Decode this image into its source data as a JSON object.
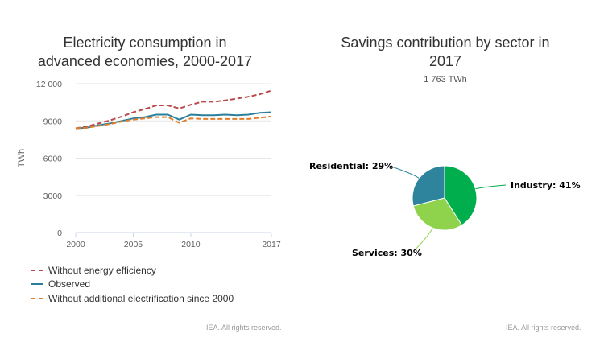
{
  "credits": {
    "left": "IEA. All rights reserved.",
    "right": "IEA. All rights reserved."
  },
  "chart_data": [
    {
      "type": "line",
      "title_lines": [
        "Electricity consumption in",
        "advanced economies, 2000-2017"
      ],
      "ylabel": "TWh",
      "xlabel": "",
      "x": [
        2000,
        2001,
        2002,
        2003,
        2004,
        2005,
        2006,
        2007,
        2008,
        2009,
        2010,
        2011,
        2012,
        2013,
        2014,
        2015,
        2016,
        2017
      ],
      "xlim": [
        2000,
        2017
      ],
      "ylim": [
        0,
        12000
      ],
      "x_ticks": [
        2000,
        2005,
        2010,
        2017
      ],
      "y_ticks": [
        0,
        3000,
        6000,
        9000,
        12000
      ],
      "y_tick_labels": [
        "0",
        "3000",
        "6000",
        "9000",
        "12 000"
      ],
      "grid": true,
      "legend_position": "bottom-left",
      "series": [
        {
          "name": "Without energy efficiency",
          "color": "#b84a4a",
          "dash": "dashed",
          "values": [
            8400,
            8550,
            8800,
            9050,
            9350,
            9700,
            9950,
            10250,
            10250,
            10000,
            10300,
            10550,
            10550,
            10650,
            10800,
            10950,
            11150,
            11450
          ]
        },
        {
          "name": "Observed",
          "color": "#2a7f9a",
          "dash": "solid",
          "values": [
            8400,
            8450,
            8650,
            8800,
            9000,
            9200,
            9300,
            9500,
            9500,
            9100,
            9500,
            9450,
            9450,
            9500,
            9450,
            9500,
            9650,
            9700
          ]
        },
        {
          "name": "Without additional electrification since 2000",
          "color": "#e07d2c",
          "dash": "dashed",
          "values": [
            8400,
            8450,
            8600,
            8750,
            8950,
            9100,
            9200,
            9300,
            9300,
            8850,
            9200,
            9150,
            9150,
            9150,
            9150,
            9150,
            9250,
            9350
          ]
        }
      ]
    },
    {
      "type": "pie",
      "title_lines": [
        "Savings contribution by sector in",
        "2017"
      ],
      "subtitle": "1 763 TWh",
      "slices": [
        {
          "label": "Industry: 41%",
          "value": 41,
          "color": "#00ae4d"
        },
        {
          "label": "Services: 30%",
          "value": 30,
          "color": "#8fd24c"
        },
        {
          "label": "Residential: 29%",
          "value": 29,
          "color": "#2e849c"
        }
      ]
    }
  ]
}
